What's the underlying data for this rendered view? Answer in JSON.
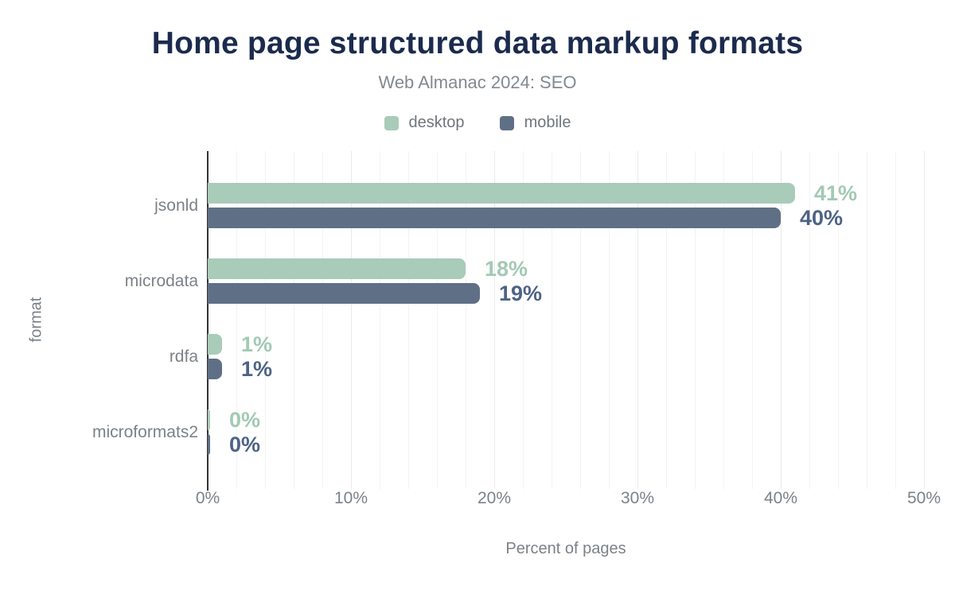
{
  "chart": {
    "title": "Home page structured data markup formats",
    "subtitle": "Web Almanac 2024: SEO"
  },
  "chart_data": {
    "type": "bar",
    "orientation": "horizontal",
    "title": "Home page structured data markup formats",
    "subtitle": "Web Almanac 2024: SEO",
    "xlabel": "Percent of pages",
    "ylabel": "format",
    "xlim": [
      0,
      50
    ],
    "grid": {
      "minor_step": 2,
      "major_step": 10,
      "show": true
    },
    "legend_position": "top",
    "categories": [
      "jsonld",
      "microdata",
      "rdfa",
      "microformats2"
    ],
    "series": [
      {
        "name": "desktop",
        "color": "#a9cbb9",
        "label_color": "#a3c9b4",
        "values": [
          41,
          18,
          1,
          0
        ],
        "labels": [
          "41%",
          "18%",
          "1%",
          "0%"
        ]
      },
      {
        "name": "mobile",
        "color": "#5f7086",
        "label_color": "#4d6386",
        "values": [
          40,
          19,
          1,
          0
        ],
        "labels": [
          "40%",
          "19%",
          "1%",
          "0%"
        ]
      }
    ],
    "x_ticks": [
      {
        "value": 0,
        "label": "0%"
      },
      {
        "value": 10,
        "label": "10%"
      },
      {
        "value": 20,
        "label": "20%"
      },
      {
        "value": 30,
        "label": "30%"
      },
      {
        "value": 40,
        "label": "40%"
      },
      {
        "value": 50,
        "label": "50%"
      }
    ]
  },
  "colors": {
    "title": "#1b2b4d",
    "subtitle": "#82898f",
    "axis_text": "#7b8288",
    "legend_text": "#6e767c",
    "gridline_minor": "#f3f3f3",
    "gridline_major": "#e9eaea",
    "axis_line": "#333333",
    "background": "#ffffff"
  }
}
